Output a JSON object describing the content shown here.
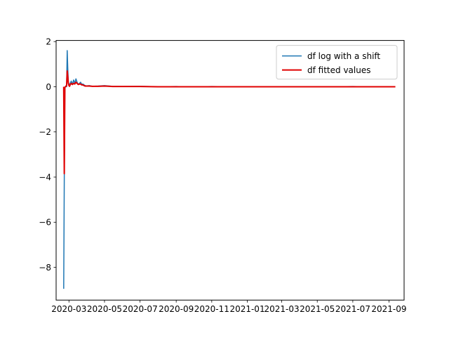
{
  "chart_data": {
    "type": "line",
    "title": "",
    "xlabel": "",
    "ylabel": "",
    "x_tick_labels": [
      "2020-03",
      "2020-05",
      "2020-07",
      "2020-09",
      "2020-11",
      "2021-01",
      "2021-03",
      "2021-05",
      "2021-07",
      "2021-09"
    ],
    "x_range": [
      "2020-02-08",
      "2021-09-27"
    ],
    "y_ticks": [
      2,
      0,
      -2,
      -4,
      -6,
      -8
    ],
    "y_tick_labels": [
      "2",
      "0",
      "−2",
      "−4",
      "−6",
      "−8"
    ],
    "ylim": [
      -9.45,
      2.05
    ],
    "grid": false,
    "legend_position": "top-right",
    "series": [
      {
        "name": "df log with a shift",
        "color": "#1f77b4",
        "x": [
          "2020-02-21",
          "2020-02-22",
          "2020-02-23",
          "2020-02-24",
          "2020-02-25",
          "2020-02-26",
          "2020-02-27",
          "2020-02-28",
          "2020-02-29",
          "2020-03-01",
          "2020-03-02",
          "2020-03-03",
          "2020-03-05",
          "2020-03-07",
          "2020-03-09",
          "2020-03-11",
          "2020-03-13",
          "2020-03-15",
          "2020-03-17",
          "2020-03-19",
          "2020-03-21",
          "2020-03-23",
          "2020-03-25",
          "2020-03-27",
          "2020-03-29",
          "2020-03-31",
          "2020-04-05",
          "2020-04-10",
          "2020-04-20",
          "2020-05-01",
          "2020-05-15",
          "2020-06-01",
          "2020-07-01",
          "2020-08-01",
          "2020-09-01",
          "2020-10-01",
          "2020-11-01",
          "2020-12-01",
          "2021-01-01",
          "2021-02-01",
          "2021-03-01",
          "2021-04-01",
          "2021-05-01",
          "2021-06-01",
          "2021-07-01",
          "2021-08-01",
          "2021-09-01",
          "2021-09-12"
        ],
        "values": [
          -8.95,
          -4.0,
          -0.05,
          0.0,
          0.05,
          0.0,
          1.6,
          0.8,
          0.2,
          0.1,
          0.05,
          0.15,
          0.25,
          0.1,
          0.3,
          0.15,
          0.35,
          0.2,
          0.1,
          0.15,
          0.2,
          0.1,
          0.12,
          0.08,
          0.05,
          0.04,
          0.05,
          0.02,
          0.03,
          0.05,
          0.02,
          0.01,
          0.02,
          0.0,
          0.01,
          -0.01,
          0.01,
          0.0,
          0.0,
          0.0,
          -0.01,
          0.0,
          0.0,
          0.0,
          0.01,
          0.0,
          0.0,
          0.0
        ]
      },
      {
        "name": "df fitted values",
        "color": "#e00000",
        "x": [
          "2020-02-21",
          "2020-02-22",
          "2020-02-23",
          "2020-02-24",
          "2020-02-25",
          "2020-02-26",
          "2020-02-27",
          "2020-02-28",
          "2020-02-29",
          "2020-03-01",
          "2020-03-02",
          "2020-03-03",
          "2020-03-05",
          "2020-03-07",
          "2020-03-09",
          "2020-03-11",
          "2020-03-13",
          "2020-03-15",
          "2020-03-17",
          "2020-03-19",
          "2020-03-21",
          "2020-03-23",
          "2020-03-25",
          "2020-03-27",
          "2020-03-29",
          "2020-03-31",
          "2020-04-05",
          "2020-04-10",
          "2020-04-20",
          "2020-05-01",
          "2020-05-15",
          "2020-06-01",
          "2020-07-01",
          "2020-08-01",
          "2020-09-01",
          "2020-10-01",
          "2020-11-01",
          "2020-12-01",
          "2021-01-01",
          "2021-02-01",
          "2021-03-01",
          "2021-04-01",
          "2021-05-01",
          "2021-06-01",
          "2021-07-01",
          "2021-08-01",
          "2021-09-01",
          "2021-09-12"
        ],
        "values": [
          0.0,
          -3.85,
          -0.02,
          0.0,
          0.02,
          0.05,
          0.7,
          0.45,
          0.15,
          0.05,
          0.02,
          0.08,
          0.15,
          0.1,
          0.15,
          0.12,
          0.2,
          0.15,
          0.1,
          0.12,
          0.12,
          0.08,
          0.08,
          0.05,
          0.03,
          0.03,
          0.03,
          0.02,
          0.02,
          0.03,
          0.01,
          0.01,
          0.01,
          0.0,
          0.0,
          0.0,
          0.0,
          0.0,
          0.0,
          0.0,
          0.0,
          0.0,
          0.0,
          0.0,
          0.0,
          0.0,
          0.0,
          0.0
        ]
      }
    ]
  }
}
